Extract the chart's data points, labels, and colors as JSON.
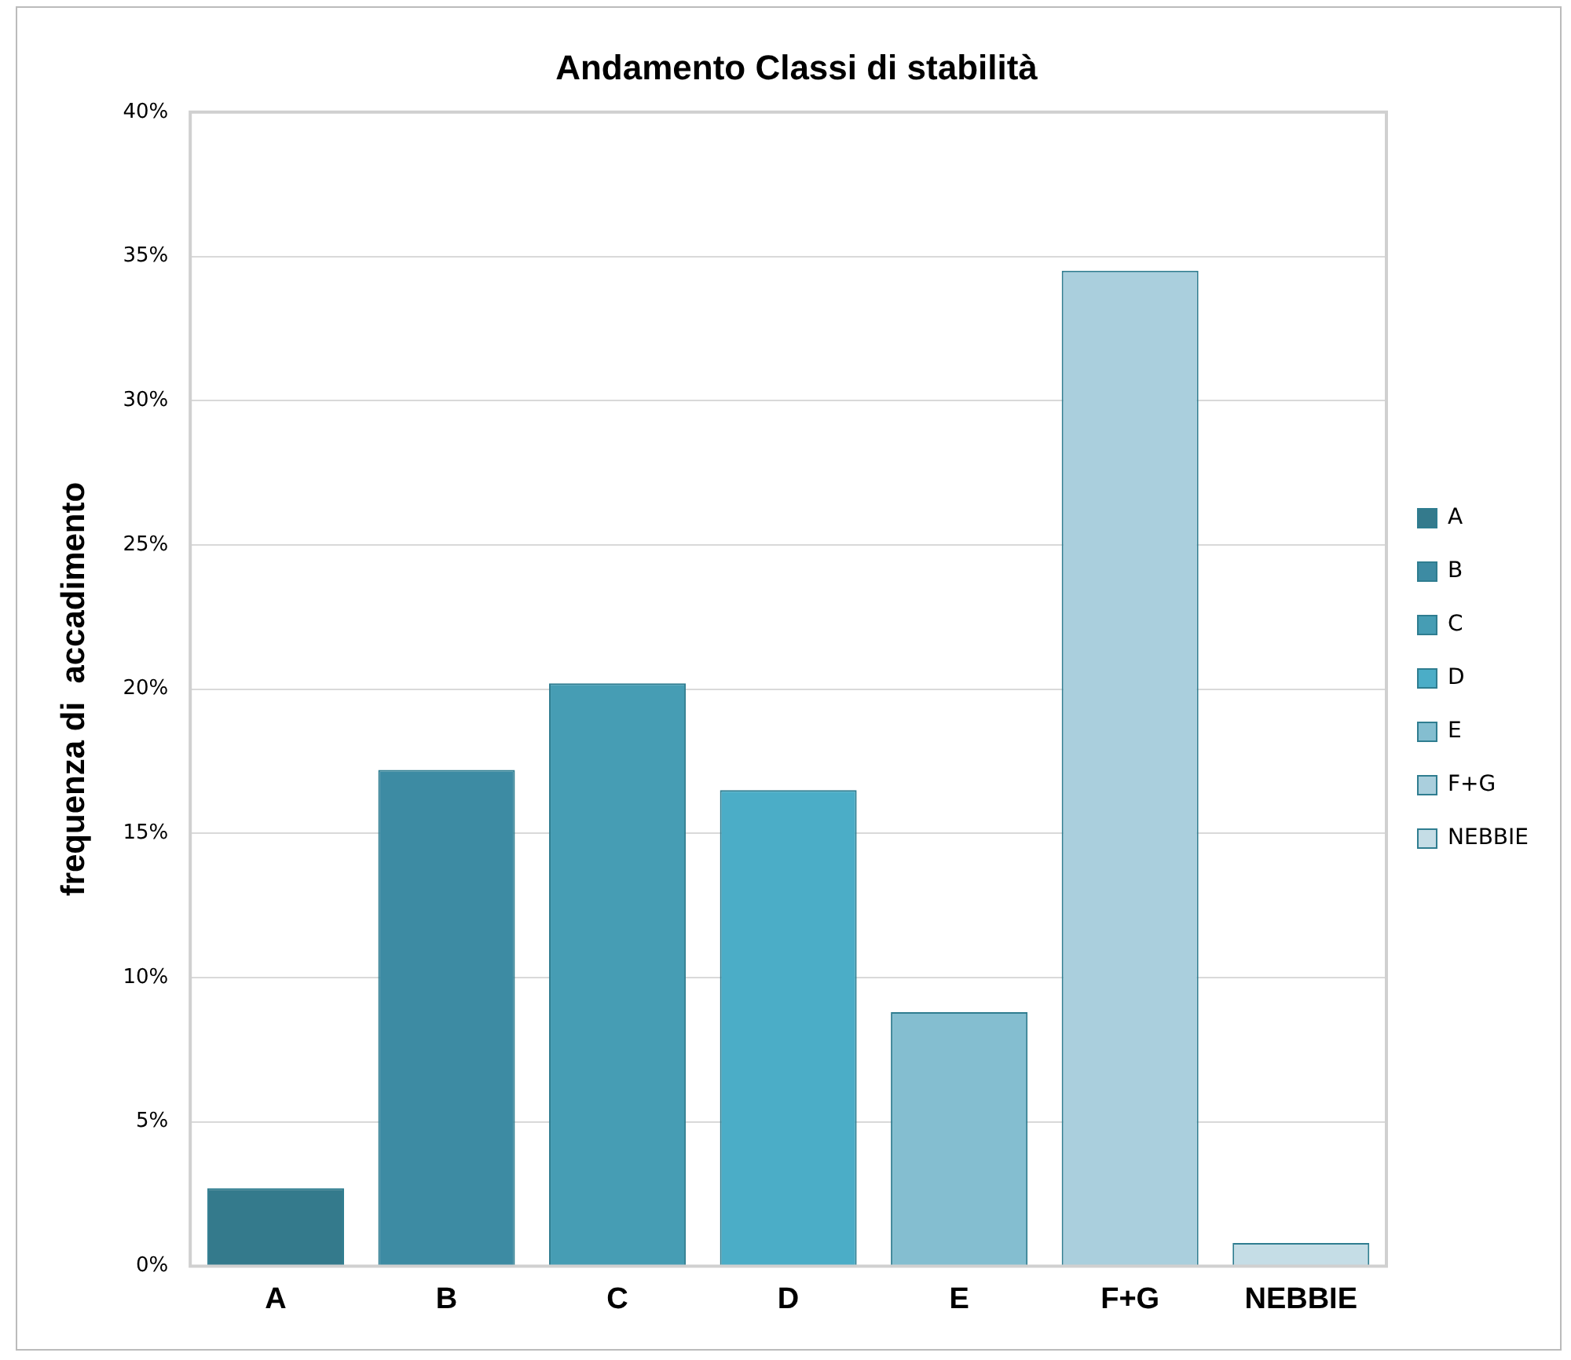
{
  "chart_data": {
    "type": "bar",
    "title": "Andamento Classi di stabilità",
    "ylabel": "frequenza di  accadimento",
    "categories": [
      "A",
      "B",
      "C",
      "D",
      "E",
      "F+G",
      "NEBBIE"
    ],
    "series": [
      {
        "name": "A",
        "color": "#347a8c",
        "values": [
          2.7,
          null,
          null,
          null,
          null,
          null,
          null
        ]
      },
      {
        "name": "B",
        "color": "#3d8ba3",
        "values": [
          null,
          17.2,
          null,
          null,
          null,
          null,
          null
        ]
      },
      {
        "name": "C",
        "color": "#469db4",
        "values": [
          null,
          null,
          20.2,
          null,
          null,
          null,
          null
        ]
      },
      {
        "name": "D",
        "color": "#4badc7",
        "values": [
          null,
          null,
          null,
          16.5,
          null,
          null,
          null
        ]
      },
      {
        "name": "E",
        "color": "#84bed0",
        "values": [
          null,
          null,
          null,
          null,
          8.8,
          null,
          null
        ]
      },
      {
        "name": "F+G",
        "color": "#aacfdd",
        "values": [
          null,
          null,
          null,
          null,
          null,
          34.5,
          null
        ]
      },
      {
        "name": "NEBBIE",
        "color": "#c5dde6",
        "values": [
          null,
          null,
          null,
          null,
          null,
          null,
          0.8
        ]
      }
    ],
    "ylim": [
      0,
      40
    ],
    "yticks": [
      {
        "value": 0,
        "label": "0%"
      },
      {
        "value": 5,
        "label": "5%"
      },
      {
        "value": 10,
        "label": "10%"
      },
      {
        "value": 15,
        "label": "15%"
      },
      {
        "value": 20,
        "label": "20%"
      },
      {
        "value": 25,
        "label": "25%"
      },
      {
        "value": 30,
        "label": "30%"
      },
      {
        "value": 35,
        "label": "35%"
      },
      {
        "value": 40,
        "label": "40%"
      }
    ],
    "grid": "y",
    "legend": "right"
  }
}
